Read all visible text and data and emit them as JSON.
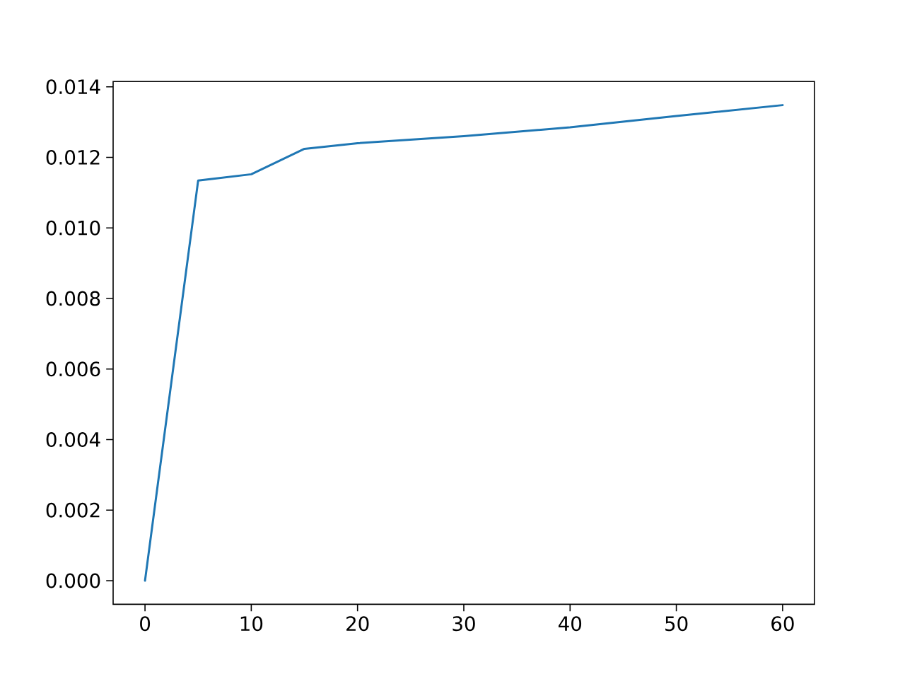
{
  "chart_data": {
    "type": "line",
    "x": [
      0,
      5,
      10,
      15,
      20,
      30,
      40,
      50,
      60
    ],
    "series": [
      {
        "color": "#1f77b4",
        "values": [
          0.0,
          0.01134,
          0.01152,
          0.01224,
          0.0124,
          0.0126,
          0.01285,
          0.01317,
          0.01348
        ]
      }
    ],
    "xlim": [
      -3,
      63
    ],
    "ylim": [
      -0.00067,
      0.01415
    ],
    "xticks": [
      0,
      10,
      20,
      30,
      40,
      50,
      60
    ],
    "yticks": [
      {
        "value": 0.0,
        "label": "0.000"
      },
      {
        "value": 0.002,
        "label": "0.002"
      },
      {
        "value": 0.004,
        "label": "0.004"
      },
      {
        "value": 0.006,
        "label": "0.006"
      },
      {
        "value": 0.008,
        "label": "0.008"
      },
      {
        "value": 0.01,
        "label": "0.010"
      },
      {
        "value": 0.012,
        "label": "0.012"
      },
      {
        "value": 0.014,
        "label": "0.014"
      }
    ]
  }
}
